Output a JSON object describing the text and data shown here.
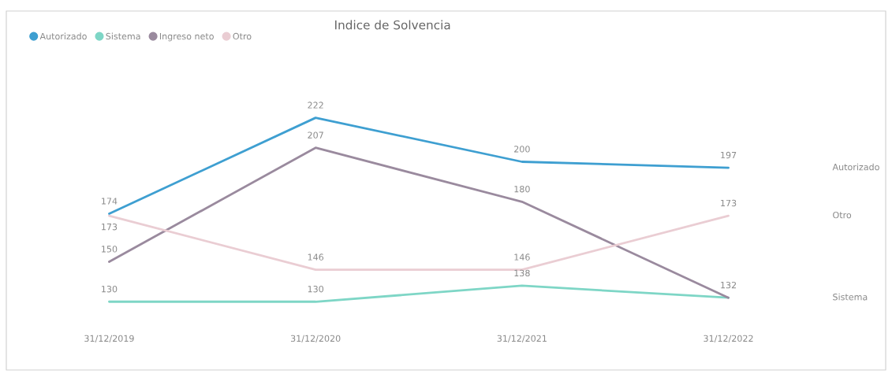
{
  "chart_data": {
    "type": "line",
    "title": "Indice de Solvencia",
    "categories": [
      "31/12/2019",
      "31/12/2020",
      "31/12/2021",
      "31/12/2022"
    ],
    "series": [
      {
        "name": "Autorizado",
        "color": "#3e9fd1",
        "values": [
          174,
          222,
          200,
          197
        ],
        "value_labels": [
          "174",
          "222",
          "200",
          "197"
        ]
      },
      {
        "name": "Sistema",
        "color": "#7ed6c6",
        "values": [
          130,
          130,
          138,
          132
        ],
        "value_labels": [
          "130",
          "130",
          "138",
          "132"
        ]
      },
      {
        "name": "Ingreso neto",
        "color": "#9a8a9e",
        "values": [
          150,
          207,
          180,
          132
        ],
        "value_labels": [
          "150",
          "207",
          "180",
          null
        ]
      },
      {
        "name": "Otro",
        "color": "#eacdd3",
        "values": [
          173,
          146,
          146,
          173
        ],
        "value_labels": [
          "173",
          "146",
          "146",
          "173"
        ]
      }
    ],
    "tick_labels": "x",
    "legend": "top left",
    "marker": "none",
    "line_style": "solid"
  }
}
